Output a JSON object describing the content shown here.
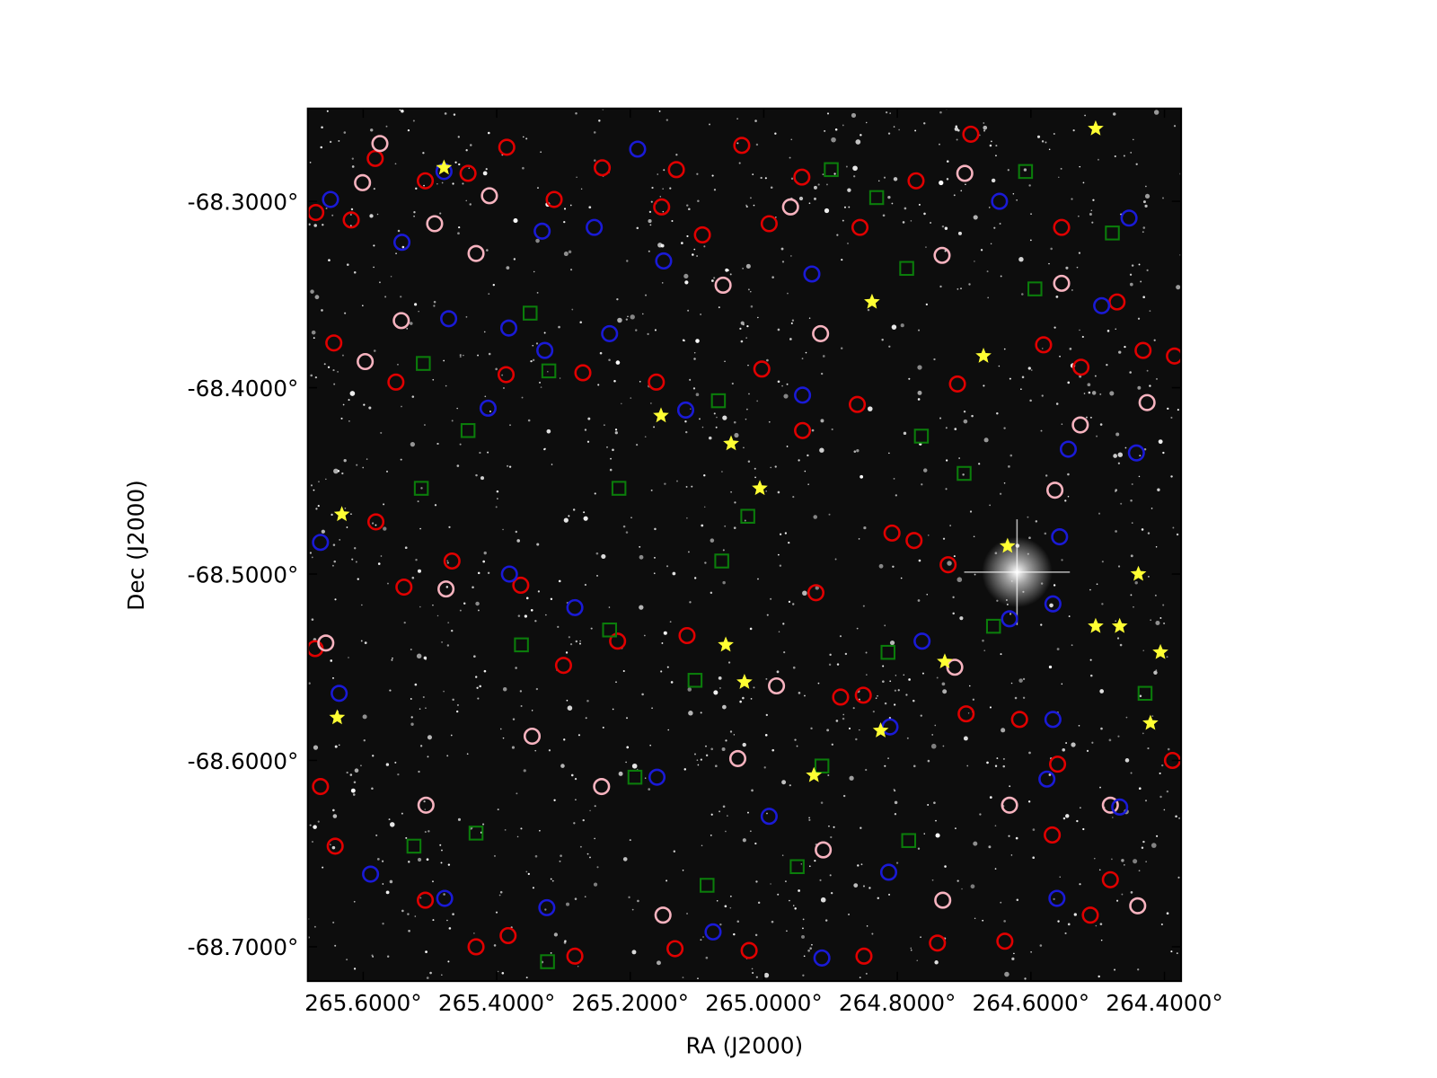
{
  "chart_data": {
    "type": "scatter",
    "x_label": "RA (J2000)",
    "y_label": "Dec (J2000)",
    "xlim": [
      265.683,
      264.375
    ],
    "ylim": [
      -68.2502,
      -68.7184
    ],
    "xticks": [
      {
        "value": 265.6,
        "label": "265.6000°"
      },
      {
        "value": 265.4,
        "label": "265.4000°"
      },
      {
        "value": 265.2,
        "label": "265.2000°"
      },
      {
        "value": 265.0,
        "label": "265.0000°"
      },
      {
        "value": 264.8,
        "label": "264.8000°"
      },
      {
        "value": 264.6,
        "label": "264.6000°"
      },
      {
        "value": 264.4,
        "label": "264.4000°"
      }
    ],
    "yticks": [
      {
        "value": -68.3,
        "label": "-68.3000°"
      },
      {
        "value": -68.4,
        "label": "-68.4000°"
      },
      {
        "value": -68.5,
        "label": "-68.5000°"
      },
      {
        "value": -68.6,
        "label": "-68.6000°"
      },
      {
        "value": -68.7,
        "label": "-68.7000°"
      }
    ],
    "series": [
      {
        "color": "#e00000",
        "marker": "circle",
        "x": [
          265.671,
          265.618,
          265.582,
          265.507,
          265.443,
          265.385,
          265.314,
          265.242,
          265.153,
          265.131,
          265.092,
          265.033,
          264.992,
          264.943,
          264.856,
          264.772,
          264.69,
          264.554,
          264.471,
          264.385,
          264.432,
          264.525,
          264.581,
          264.71,
          264.86,
          264.942,
          265.003,
          265.161,
          265.271,
          265.386,
          265.551,
          265.644,
          265.581,
          265.539,
          265.467,
          265.364,
          265.3,
          265.115,
          264.922,
          264.851,
          264.697,
          264.617,
          264.388,
          264.56,
          264.568,
          264.511,
          264.639,
          264.74,
          264.85,
          265.022,
          265.133,
          265.283,
          265.431,
          265.507,
          265.642,
          265.664,
          265.672,
          264.724,
          264.808,
          264.775,
          265.219,
          264.885,
          264.481,
          265.383
        ],
        "y": [
          -68.306,
          -68.31,
          -68.277,
          -68.289,
          -68.285,
          -68.271,
          -68.299,
          -68.282,
          -68.303,
          -68.283,
          -68.318,
          -68.27,
          -68.312,
          -68.287,
          -68.314,
          -68.289,
          -68.264,
          -68.314,
          -68.354,
          -68.383,
          -68.38,
          -68.389,
          -68.377,
          -68.398,
          -68.409,
          -68.423,
          -68.39,
          -68.397,
          -68.392,
          -68.393,
          -68.397,
          -68.376,
          -68.472,
          -68.507,
          -68.493,
          -68.506,
          -68.549,
          -68.533,
          -68.51,
          -68.565,
          -68.575,
          -68.578,
          -68.6,
          -68.602,
          -68.64,
          -68.683,
          -68.697,
          -68.698,
          -68.705,
          -68.702,
          -68.701,
          -68.705,
          -68.7,
          -68.675,
          -68.646,
          -68.614,
          -68.54,
          -68.495,
          -68.478,
          -68.482,
          -68.536,
          -68.566,
          -68.664,
          -68.694
        ]
      },
      {
        "color": "#f7b3bf",
        "marker": "circle",
        "x": [
          265.575,
          265.601,
          265.493,
          265.411,
          265.431,
          265.543,
          265.597,
          265.061,
          264.96,
          264.915,
          264.733,
          264.699,
          264.554,
          264.426,
          264.526,
          264.564,
          264.714,
          264.632,
          264.481,
          264.44,
          264.732,
          264.911,
          265.039,
          264.981,
          265.151,
          265.243,
          265.347,
          265.506,
          265.476,
          265.656
        ],
        "y": [
          -68.269,
          -68.29,
          -68.312,
          -68.297,
          -68.328,
          -68.364,
          -68.386,
          -68.345,
          -68.303,
          -68.371,
          -68.329,
          -68.285,
          -68.344,
          -68.408,
          -68.42,
          -68.455,
          -68.55,
          -68.624,
          -68.624,
          -68.678,
          -68.675,
          -68.648,
          -68.599,
          -68.56,
          -68.683,
          -68.614,
          -68.587,
          -68.624,
          -68.508,
          -68.537
        ]
      },
      {
        "color": "#1a1ad6",
        "marker": "circle",
        "x": [
          265.649,
          265.542,
          265.479,
          265.254,
          265.189,
          265.332,
          265.15,
          264.928,
          264.647,
          264.494,
          264.453,
          265.472,
          265.382,
          265.231,
          265.328,
          265.413,
          265.117,
          264.942,
          264.544,
          264.557,
          264.567,
          264.632,
          264.763,
          264.811,
          264.567,
          264.576,
          264.467,
          264.561,
          264.813,
          264.992,
          265.16,
          265.283,
          265.381,
          265.589,
          265.478,
          265.325,
          265.076,
          264.913,
          265.664,
          265.636,
          264.442
        ],
        "y": [
          -68.299,
          -68.322,
          -68.284,
          -68.314,
          -68.272,
          -68.316,
          -68.332,
          -68.339,
          -68.3,
          -68.356,
          -68.309,
          -68.363,
          -68.368,
          -68.371,
          -68.38,
          -68.411,
          -68.412,
          -68.404,
          -68.433,
          -68.48,
          -68.516,
          -68.524,
          -68.536,
          -68.582,
          -68.578,
          -68.61,
          -68.625,
          -68.674,
          -68.66,
          -68.63,
          -68.609,
          -68.518,
          -68.5,
          -68.661,
          -68.674,
          -68.679,
          -68.692,
          -68.706,
          -68.483,
          -68.564,
          -68.435
        ]
      },
      {
        "color": "#0b7d0b",
        "marker": "square",
        "x": [
          264.899,
          264.831,
          264.608,
          264.478,
          264.786,
          264.594,
          265.35,
          265.51,
          265.322,
          265.068,
          265.443,
          264.764,
          265.513,
          265.217,
          264.7,
          265.024,
          265.063,
          265.231,
          265.363,
          264.814,
          264.656,
          265.103,
          264.429,
          264.913,
          265.193,
          265.431,
          265.524,
          264.783,
          264.95,
          265.085,
          265.324
        ],
        "y": [
          -68.283,
          -68.298,
          -68.284,
          -68.317,
          -68.336,
          -68.347,
          -68.36,
          -68.387,
          -68.391,
          -68.407,
          -68.423,
          -68.426,
          -68.454,
          -68.454,
          -68.446,
          -68.469,
          -68.493,
          -68.53,
          -68.538,
          -68.542,
          -68.528,
          -68.557,
          -68.564,
          -68.603,
          -68.609,
          -68.639,
          -68.646,
          -68.643,
          -68.657,
          -68.667,
          -68.708
        ]
      },
      {
        "color": "#ffff33",
        "marker": "star",
        "x": [
          265.479,
          265.154,
          265.049,
          265.006,
          265.632,
          264.838,
          264.671,
          264.635,
          264.439,
          264.503,
          264.467,
          264.406,
          265.057,
          265.029,
          264.729,
          265.639,
          264.825,
          264.925,
          264.421,
          264.503
        ],
        "y": [
          -68.282,
          -68.415,
          -68.43,
          -68.454,
          -68.468,
          -68.354,
          -68.383,
          -68.485,
          -68.5,
          -68.528,
          -68.528,
          -68.542,
          -68.538,
          -68.558,
          -68.547,
          -68.577,
          -68.584,
          -68.608,
          -68.58,
          -68.261
        ]
      }
    ]
  }
}
